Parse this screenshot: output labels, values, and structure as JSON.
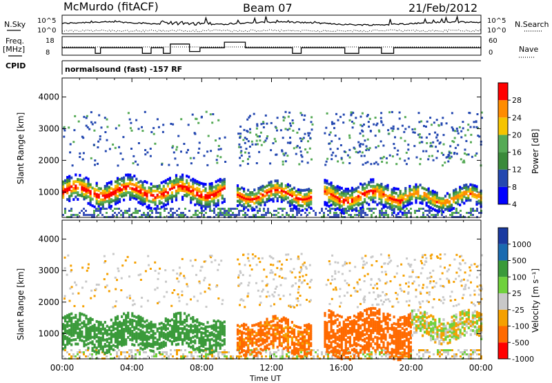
{
  "header": {
    "site": "McMurdo (fitACF)",
    "beam": "Beam 07",
    "date": "21/Feb/2012"
  },
  "top_panels": {
    "nsky_label": "N.Sky",
    "nsearch_label": "N.Search",
    "nsky_ticks": [
      "10^5",
      "10^0"
    ],
    "nsearch_ticks": [
      "10^5",
      "10^0"
    ],
    "freq_label_1": "Freq.",
    "freq_label_2": "[MHz]",
    "freq_ticks": [
      "18",
      "8"
    ],
    "nave_ticks": [
      "60",
      "0"
    ],
    "nave_label": "Nave",
    "cpid_label": "CPID",
    "cpid_text": "normalsound (fast) -157 RF"
  },
  "chart_data": [
    {
      "type": "heatmap",
      "name": "power",
      "ylabel": "Slant Range [km]",
      "xlabel": "",
      "yticks": [
        "1000",
        "2000",
        "3000",
        "4000"
      ],
      "ylim": [
        200,
        4600
      ],
      "xlim": [
        0,
        24
      ],
      "colorbar_label": "Power [dB]",
      "colorbar_ticks": [
        "28",
        "24",
        "20",
        "16",
        "12",
        "8",
        "4"
      ],
      "colorbar_colors": [
        "#0000ff",
        "#2448b0",
        "#3a8a3a",
        "#55aa55",
        "#f5c400",
        "#ff8c00",
        "#ff0000"
      ],
      "echo_bands": [
        {
          "t_start": 0.0,
          "t_end": 9.3,
          "r_center": 1000,
          "r_width": 400,
          "peak_db": 30
        },
        {
          "t_start": 10.0,
          "t_end": 14.3,
          "r_center": 900,
          "r_width": 350,
          "peak_db": 28
        },
        {
          "t_start": 15.0,
          "t_end": 19.5,
          "r_center": 850,
          "r_width": 400,
          "peak_db": 28
        },
        {
          "t_start": 19.5,
          "t_end": 24.0,
          "r_center": 800,
          "r_width": 300,
          "peak_db": 26
        }
      ]
    },
    {
      "type": "heatmap",
      "name": "velocity",
      "ylabel": "Slant Range [km]",
      "xlabel": "Time UT",
      "yticks": [
        "1000",
        "2000",
        "3000",
        "4000"
      ],
      "xticks": [
        "00:00",
        "04:00",
        "08:00",
        "12:00",
        "16:00",
        "20:00",
        "00:00"
      ],
      "ylim": [
        200,
        4600
      ],
      "xlim": [
        0,
        24
      ],
      "colorbar_label": "Velocity [m s⁻¹]",
      "colorbar_ticks": [
        "1000",
        "500",
        "100",
        "25",
        "-25",
        "-100",
        "-500",
        "-1000"
      ],
      "colorbar_colors": [
        "#ff0000",
        "#ff6a00",
        "#f5a000",
        "#c8c8c8",
        "#6fd13c",
        "#3a9a3a",
        "#1a6ab0",
        "#1a3aa0"
      ],
      "echo_bands": [
        {
          "t_start": 0.0,
          "t_end": 9.3,
          "r_center": 1000,
          "r_width": 500,
          "velocity": 200
        },
        {
          "t_start": 10.0,
          "t_end": 14.3,
          "r_center": 900,
          "r_width": 500,
          "velocity": -150
        },
        {
          "t_start": 15.0,
          "t_end": 20.0,
          "r_center": 1000,
          "r_width": 700,
          "velocity": -200
        },
        {
          "t_start": 20.0,
          "t_end": 24.0,
          "r_center": 1200,
          "r_width": 400,
          "velocity": 0
        }
      ]
    }
  ]
}
